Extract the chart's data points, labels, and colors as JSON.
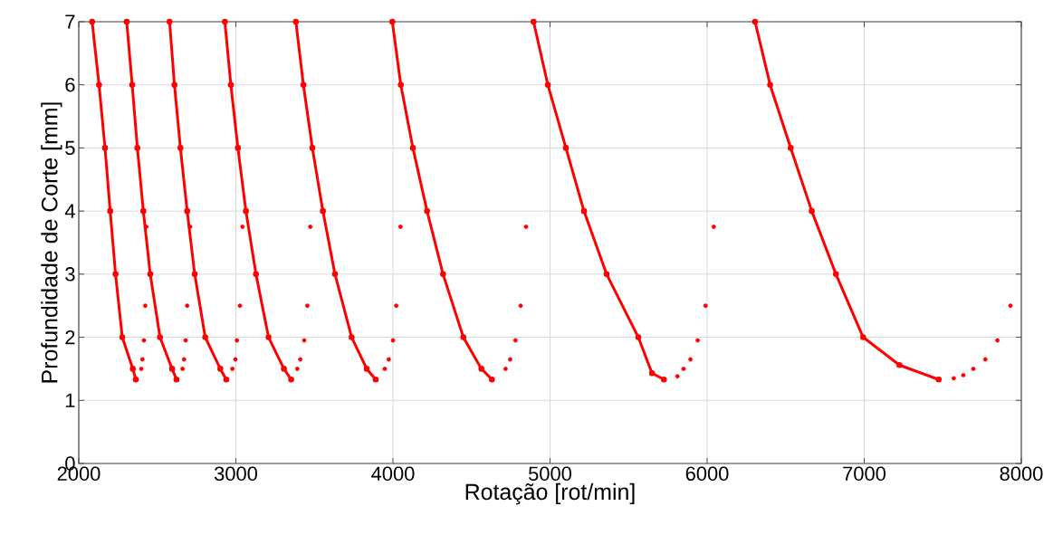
{
  "chart_data": {
    "type": "line",
    "xlabel": "Rotação [rot/min]",
    "ylabel": "Profundidade de Corte [mm]",
    "xlim": [
      2000,
      8000
    ],
    "xticks": [
      2000,
      3000,
      4000,
      5000,
      6000,
      7000,
      8000
    ],
    "ylim": [
      0,
      7
    ],
    "yticks": [
      0,
      1,
      2,
      3,
      4,
      5,
      6,
      7
    ],
    "grid": true,
    "marker": "circle",
    "line_style": "solid",
    "series": [
      {
        "color": "#ff0000",
        "x": [
          2085,
          2129,
          2167,
          2200,
          2234,
          2277,
          2344,
          2363
        ],
        "values": [
          7,
          6,
          5,
          4,
          3,
          2,
          1.5,
          1.33
        ]
      },
      {
        "type": "scatter",
        "color": "#ff0000",
        "x": [
          2398,
          2405,
          2415,
          2423,
          2430
        ],
        "values": [
          1.5,
          1.65,
          1.95,
          2.5,
          3.75
        ]
      },
      {
        "color": "#ff0000",
        "x": [
          2305,
          2340,
          2373,
          2411,
          2455,
          2517,
          2594,
          2622
        ],
        "values": [
          7,
          6,
          5,
          4,
          3,
          2,
          1.5,
          1.33
        ]
      },
      {
        "type": "scatter",
        "color": "#ff0000",
        "x": [
          2661,
          2670,
          2680,
          2690,
          2709
        ],
        "values": [
          1.5,
          1.65,
          1.95,
          2.5,
          3.75
        ]
      },
      {
        "color": "#ff0000",
        "x": [
          2578,
          2609,
          2647,
          2690,
          2738,
          2805,
          2901,
          2939
        ],
        "values": [
          7,
          6,
          5,
          4,
          3,
          2,
          1.5,
          1.33
        ]
      },
      {
        "type": "scatter",
        "color": "#ff0000",
        "x": [
          2978,
          2997,
          3007,
          3026,
          3042
        ],
        "values": [
          1.5,
          1.65,
          1.95,
          2.5,
          3.75
        ]
      },
      {
        "color": "#ff0000",
        "x": [
          2930,
          2968,
          3013,
          3064,
          3128,
          3208,
          3306,
          3352
        ],
        "values": [
          7,
          6,
          5,
          4,
          3,
          2,
          1.5,
          1.33
        ]
      },
      {
        "type": "scatter",
        "color": "#ff0000",
        "x": [
          3391,
          3410,
          3435,
          3455,
          3474
        ],
        "values": [
          1.5,
          1.65,
          1.95,
          2.5,
          3.75
        ]
      },
      {
        "color": "#ff0000",
        "x": [
          3382,
          3430,
          3487,
          3554,
          3631,
          3737,
          3833,
          3890
        ],
        "values": [
          7,
          6,
          5,
          4,
          3,
          2,
          1.5,
          1.33
        ]
      },
      {
        "type": "scatter",
        "color": "#ff0000",
        "x": [
          3948,
          3973,
          4000,
          4021,
          4048
        ],
        "values": [
          1.5,
          1.65,
          1.95,
          2.5,
          3.75
        ]
      },
      {
        "color": "#ff0000",
        "x": [
          3996,
          4050,
          4127,
          4217,
          4319,
          4448,
          4563,
          4630
        ],
        "values": [
          7,
          6,
          5,
          4,
          3,
          2,
          1.5,
          1.33
        ]
      },
      {
        "type": "scatter",
        "color": "#ff0000",
        "x": [
          4717,
          4746,
          4780,
          4813,
          4847
        ],
        "values": [
          1.5,
          1.65,
          1.95,
          2.5,
          3.75
        ]
      },
      {
        "color": "#ff0000",
        "x": [
          4895,
          4986,
          5101,
          5216,
          5360,
          5562,
          5649,
          5725
        ],
        "values": [
          7,
          6,
          5,
          4,
          3,
          2,
          1.43,
          1.33
        ]
      },
      {
        "type": "scatter",
        "color": "#ff0000",
        "x": [
          5811,
          5850,
          5894,
          5940,
          5990,
          6042
        ],
        "values": [
          1.38,
          1.5,
          1.65,
          1.95,
          2.5,
          3.75
        ]
      },
      {
        "color": "#ff0000",
        "x": [
          6305,
          6401,
          6532,
          6666,
          6820,
          6993,
          7224,
          7474
        ],
        "values": [
          7,
          6,
          5,
          4,
          3,
          2,
          1.56,
          1.33
        ]
      },
      {
        "type": "scatter",
        "color": "#ff0000",
        "x": [
          7570,
          7631,
          7695,
          7771,
          7848,
          7931
        ],
        "values": [
          1.35,
          1.4,
          1.5,
          1.65,
          1.95,
          2.5
        ]
      }
    ]
  }
}
